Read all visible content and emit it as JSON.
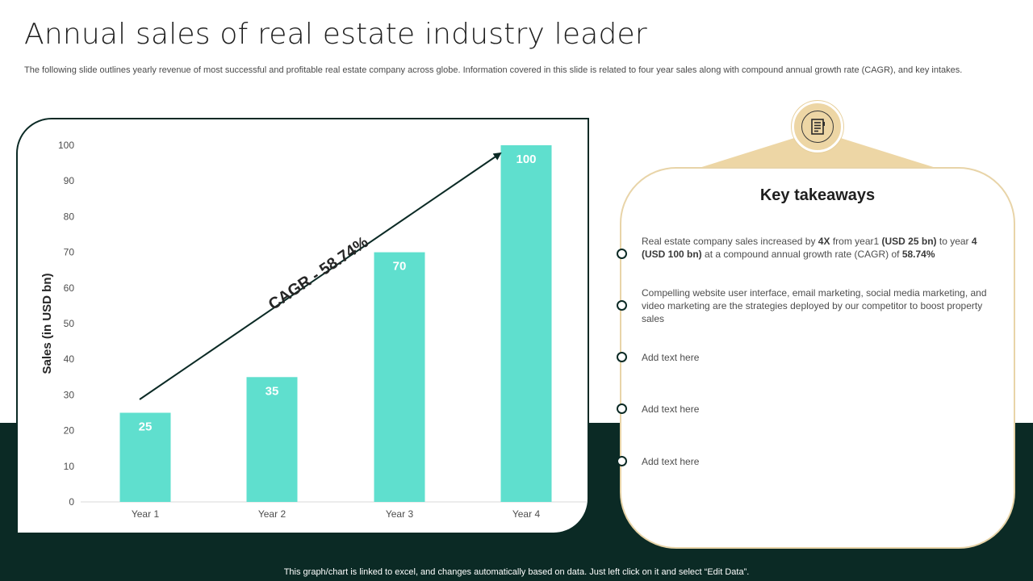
{
  "header": {
    "title": "Annual sales of real estate industry leader",
    "subtitle": "The following slide outlines yearly revenue of most successful and profitable real estate company across globe. Information covered in this slide is related to four year sales along with compound annual growth rate (CAGR), and key intakes."
  },
  "chart_data": {
    "type": "bar",
    "categories": [
      "Year 1",
      "Year 2",
      "Year 3",
      "Year 4"
    ],
    "values": [
      25,
      35,
      70,
      100
    ],
    "data_labels": [
      "25",
      "35",
      "70",
      "100"
    ],
    "ylabel": "Sales (in USD bn)",
    "xlabel": "",
    "ylim": [
      0,
      100
    ],
    "yticks": [
      0,
      10,
      20,
      30,
      40,
      50,
      60,
      70,
      80,
      90,
      100
    ],
    "bar_color": "#5fdfce",
    "annotation": "CAGR - 58.74%",
    "grid": false
  },
  "takeaways": {
    "title": "Key takeaways",
    "icon": "notebook-icon",
    "item1": {
      "t1": "Real estate company sales increased by ",
      "b1": "4X",
      "t2": " from year1 ",
      "b2": "(USD 25 bn)",
      "t3": " to year ",
      "b3": "4 (USD 100 bn)",
      "t4": " at a compound annual growth rate (CAGR) of ",
      "b4": "58.74%"
    },
    "item2": "Compelling website user interface, email marketing, social media marketing, and video marketing are the strategies deployed by our competitor to boost property sales",
    "item3": "Add text here",
    "item4": "Add text here",
    "item5": "Add text here"
  },
  "footer": {
    "note": "This graph/chart is linked to excel, and changes automatically based on data. Just left click on it and select “Edit Data”."
  },
  "colors": {
    "dark_green": "#0b2a25",
    "bar": "#5fdfce",
    "accent_tan": "#edd6a5"
  }
}
